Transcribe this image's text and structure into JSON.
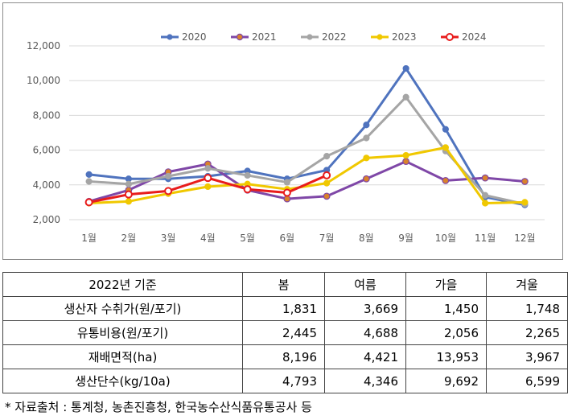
{
  "chart_data": {
    "type": "line",
    "categories": [
      "1월",
      "2월",
      "3월",
      "4월",
      "5월",
      "6월",
      "7월",
      "8월",
      "9월",
      "10월",
      "11월",
      "12월"
    ],
    "ylim": [
      2000,
      12000
    ],
    "yticks": [
      "2,000",
      "4,000",
      "6,000",
      "8,000",
      "10,000",
      "12,000"
    ],
    "ytick_values": [
      2000,
      4000,
      6000,
      8000,
      10000,
      12000
    ],
    "grid": true,
    "legend_position": "top",
    "series": [
      {
        "name": "2020",
        "color": "#4f73be",
        "marker": "filled",
        "values": [
          4600,
          4350,
          4350,
          4500,
          4800,
          4350,
          4850,
          7450,
          10700,
          7200,
          3300,
          2850
        ]
      },
      {
        "name": "2021",
        "color": "#7f47a7",
        "marker": "filled-orange",
        "values": [
          3050,
          3700,
          4750,
          5200,
          3700,
          3200,
          3350,
          4350,
          5350,
          4250,
          4400,
          4200
        ]
      },
      {
        "name": "2022",
        "color": "#a5a5a5",
        "marker": "filled",
        "values": [
          4200,
          4050,
          4500,
          4950,
          4550,
          4150,
          5650,
          6700,
          9050,
          5950,
          3400,
          2900
        ]
      },
      {
        "name": "2023",
        "color": "#f0c800",
        "marker": "filled",
        "values": [
          2950,
          3050,
          3500,
          3900,
          4050,
          3750,
          4100,
          5550,
          5700,
          6150,
          2950,
          3000
        ]
      },
      {
        "name": "2024",
        "color": "#e81c1c",
        "marker": "hollow",
        "values": [
          3000,
          3450,
          3650,
          4400,
          3750,
          3550,
          4550,
          null,
          null,
          null,
          null,
          null
        ]
      }
    ]
  },
  "table": {
    "headers": [
      "2022년 기준",
      "봄",
      "여름",
      "가을",
      "겨울"
    ],
    "rows": [
      {
        "label": "생산자 수취가(원/포기)",
        "values": [
          "1,831",
          "3,669",
          "1,450",
          "1,748"
        ]
      },
      {
        "label": "유통비용(원/포기)",
        "values": [
          "2,445",
          "4,688",
          "2,056",
          "2,265"
        ]
      },
      {
        "label": "재배면적(ha)",
        "values": [
          "8,196",
          "4,421",
          "13,953",
          "3,967"
        ]
      },
      {
        "label": "생산단수(kg/10a)",
        "values": [
          "4,793",
          "4,346",
          "9,692",
          "6,599"
        ]
      }
    ]
  },
  "source_note": "* 자료출처 : 통계청, 농촌진흥청, 한국농수산식품유통공사 등"
}
